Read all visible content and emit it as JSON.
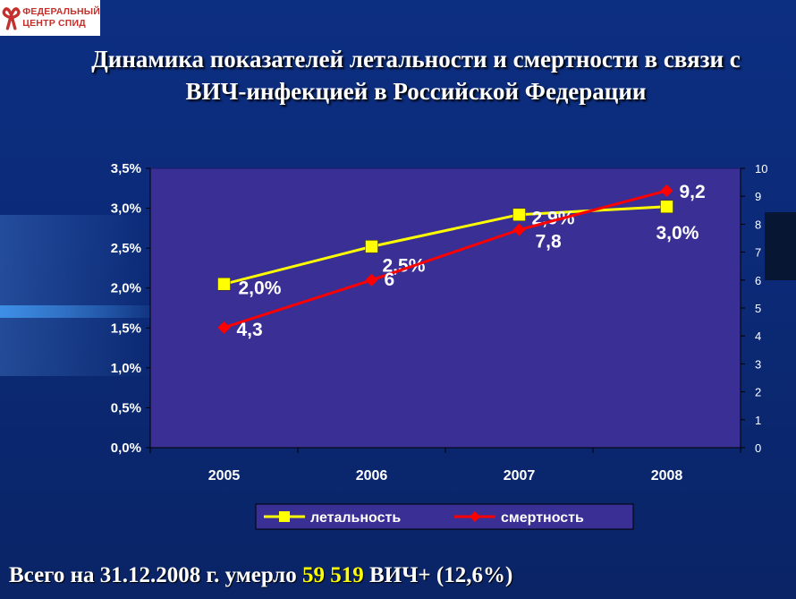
{
  "logo": {
    "line1": "ФЕДЕРАЛЬНЫЙ",
    "line2": "ЦЕНТР СПИД",
    "color": "#c4302b"
  },
  "title": {
    "line1": "Динамика показателей летальности и смертности в связи с",
    "line2": "ВИЧ-инфекцией в Российской Федерации"
  },
  "chart_data": {
    "type": "line",
    "categories": [
      "2005",
      "2006",
      "2007",
      "2008"
    ],
    "y_left": {
      "ylim": [
        0,
        3.5
      ],
      "ticks": [
        "0,0%",
        "0,5%",
        "1,0%",
        "1,5%",
        "2,0%",
        "2,5%",
        "3,0%",
        "3,5%"
      ]
    },
    "y_right": {
      "ylim": [
        0,
        10
      ],
      "ticks": [
        "0",
        "1",
        "2",
        "3",
        "4",
        "5",
        "6",
        "7",
        "8",
        "9",
        "10"
      ]
    },
    "series": [
      {
        "name": "летальность",
        "axis": "left",
        "color": "#ffff00",
        "marker": "square",
        "values": [
          2.05,
          2.52,
          2.92,
          3.02
        ],
        "labels": [
          "2,0%",
          "2,5%",
          "2,9%",
          "3,0%"
        ]
      },
      {
        "name": "смертность",
        "axis": "right",
        "color": "#ff0000",
        "marker": "diamond",
        "values": [
          4.3,
          6.0,
          7.8,
          9.2
        ],
        "labels": [
          "4,3",
          "6",
          "7,8",
          "9,2"
        ]
      }
    ],
    "grid": false,
    "legend": "bottom",
    "plot_background": "#3a2f94"
  },
  "footer": {
    "prefix": "Всего на 31.12.2008 г. умерло ",
    "highlight": "59 519",
    "suffix": " ВИЧ+ (12,6%)"
  }
}
